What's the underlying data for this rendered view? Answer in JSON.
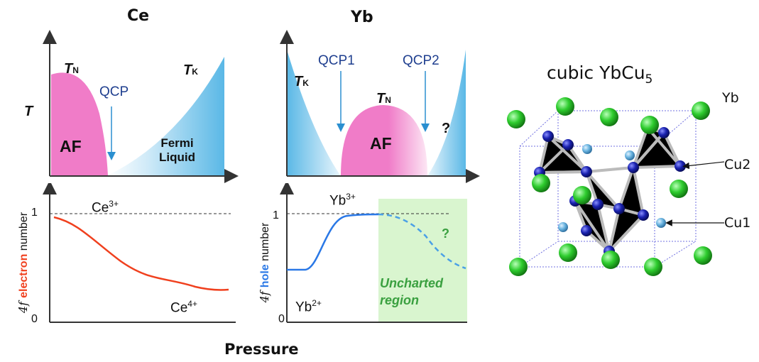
{
  "headers": {
    "ce": "Ce",
    "yb": "Yb",
    "pressure": "Pressure"
  },
  "ce_phase": {
    "t_axis": "T",
    "tn_main": "T",
    "tn_sub": "N",
    "tk_main": "T",
    "tk_sub": "K",
    "qcp": "QCP",
    "af": "AF",
    "fermi_line1": "Fermi",
    "fermi_line2": "Liquid"
  },
  "yb_phase": {
    "tk_main": "T",
    "tk_sub": "K",
    "tn_main": "T",
    "tn_sub": "N",
    "qcp1": "QCP1",
    "qcp2": "QCP2",
    "af": "AF",
    "question": "?"
  },
  "ce_valence": {
    "ylabel_prefix": "4f ",
    "ylabel_highlight": "electron",
    "ylabel_suffix": " number",
    "tick_1": "1",
    "tick_0": "0",
    "upper_base": "Ce",
    "upper_sup": "3+",
    "lower_base": "Ce",
    "lower_sup": "4+"
  },
  "yb_valence": {
    "ylabel_prefix": "4f ",
    "ylabel_highlight": "hole",
    "ylabel_suffix": " number",
    "tick_1": "1",
    "tick_0": "0",
    "upper_base": "Yb",
    "upper_sup": "3+",
    "lower_base": "Yb",
    "lower_sup": "2+",
    "uncharted_line1": "Uncharted",
    "uncharted_line2": "region",
    "question": "?"
  },
  "crystal": {
    "title_main": "cubic YbCu",
    "title_sub": "5",
    "label_yb": "Yb",
    "label_cu2": "Cu2",
    "label_cu1": "Cu1"
  },
  "colors": {
    "af_pink": "#f07cc8",
    "fermi_blue": "#5ab8e6",
    "qcp_text": "#1f3f8f",
    "qcp_arrow": "#2a8fd0",
    "electron_red": "#f0401e",
    "hole_blue": "#2a78e6",
    "uncharted_green": "#3aa040",
    "uncharted_bg": "#d9f5cf",
    "yb_atom": "#2ecc2e",
    "cu_atom": "#1a22b0",
    "cu1_atom": "#6ab4e0"
  }
}
